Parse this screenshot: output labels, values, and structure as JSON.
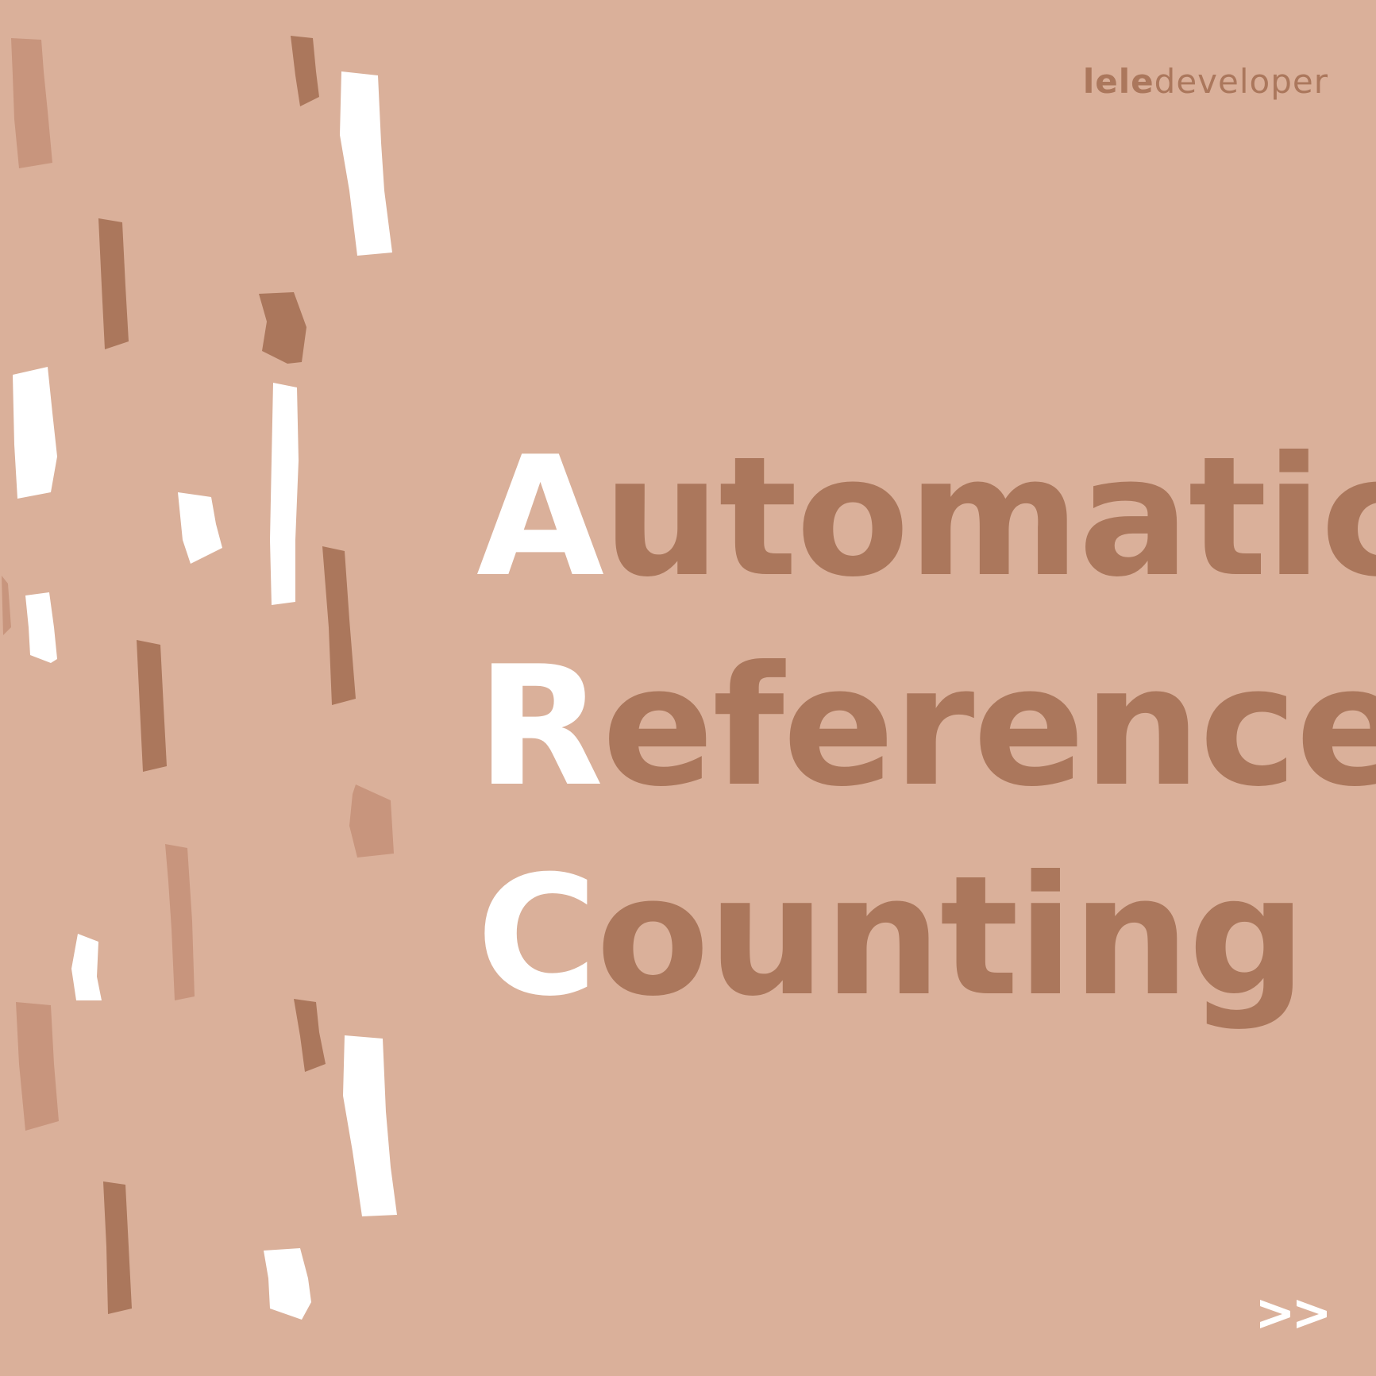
{
  "colors": {
    "background": "#dab09a",
    "accent_dark": "#ab775c",
    "accent_mid": "#c8957d",
    "highlight": "#ffffff",
    "logo": "#ab775c"
  },
  "logo": {
    "bold_part": "lele",
    "light_part": "developer"
  },
  "title": {
    "lines": [
      {
        "initial": "A",
        "rest": "utomatic"
      },
      {
        "initial": "R",
        "rest": "eference"
      },
      {
        "initial": "C",
        "rest": "ounting"
      }
    ]
  },
  "navigation": {
    "next_icon": "double-chevron-right-icon"
  }
}
